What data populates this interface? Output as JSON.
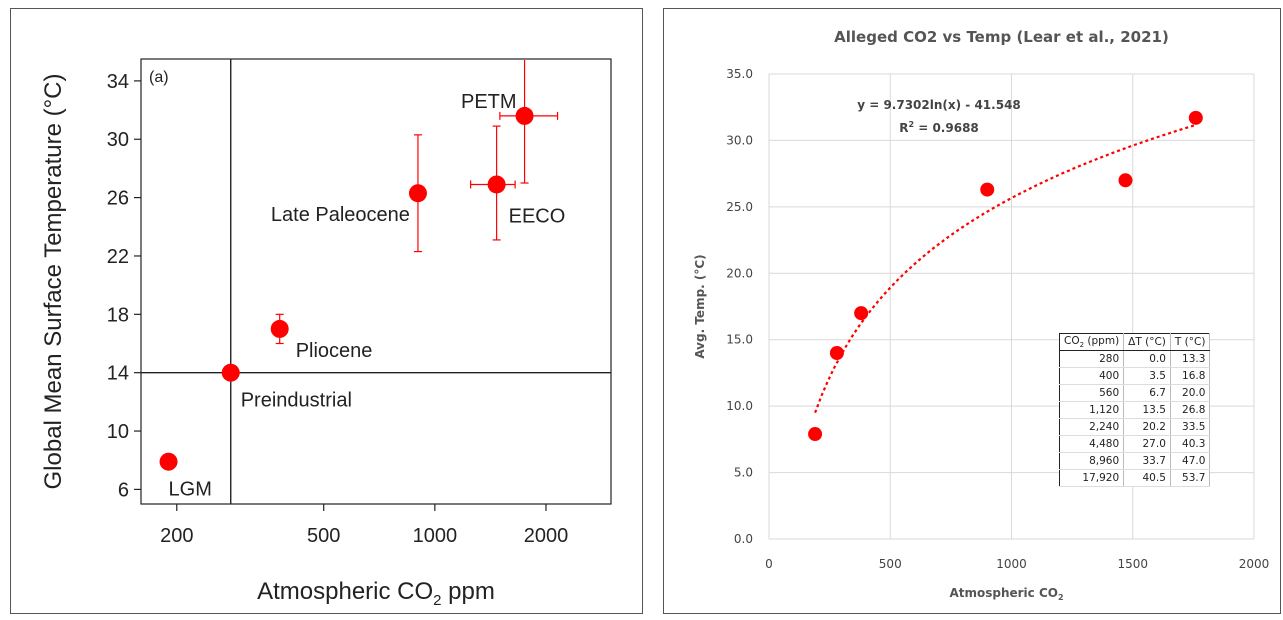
{
  "chart_data": [
    {
      "type": "scatter",
      "panel_label": "(a)",
      "xlabel_main": "Atmospheric CO",
      "xlabel_sub": "2",
      "xlabel_tail": " ppm",
      "ylabel": "Global Mean Surface Temperature (°C)",
      "xscale": "log",
      "xlim": [
        160,
        3000
      ],
      "ylim": [
        5,
        35.5
      ],
      "xticks": [
        200,
        500,
        1000,
        2000
      ],
      "yticks": [
        6,
        10,
        14,
        18,
        22,
        26,
        30,
        34
      ],
      "grid": false,
      "reference_lines": {
        "x": 280,
        "y": 14
      },
      "marker_color": "#ff0000",
      "points": [
        {
          "label": "LGM",
          "x": 190,
          "y": 7.9,
          "yerr_low": 7.9,
          "yerr_high": 7.9,
          "xerr_low": 190,
          "xerr_high": 190
        },
        {
          "label": "Preindustrial",
          "x": 280,
          "y": 14,
          "yerr_low": 14,
          "yerr_high": 14,
          "xerr_low": 280,
          "xerr_high": 280
        },
        {
          "label": "Pliocene",
          "x": 380,
          "y": 17,
          "yerr_low": 16,
          "yerr_high": 18,
          "xerr_low": 380,
          "xerr_high": 380
        },
        {
          "label": "Late Paleocene",
          "x": 900,
          "y": 26.3,
          "yerr_low": 22.3,
          "yerr_high": 30.3,
          "xerr_low": 900,
          "xerr_high": 900
        },
        {
          "label": "EECO",
          "x": 1470,
          "y": 26.9,
          "yerr_low": 23.1,
          "yerr_high": 30.9,
          "xerr_low": 1250,
          "xerr_high": 1650
        },
        {
          "label": "PETM",
          "x": 1750,
          "y": 31.6,
          "yerr_low": 27,
          "yerr_high": 35.5,
          "xerr_low": 1500,
          "xerr_high": 2150
        }
      ]
    },
    {
      "type": "scatter",
      "title": "Alleged CO2 vs Temp (Lear et al., 2021)",
      "xlabel_main": "Atmospheric CO",
      "xlabel_sub": "2",
      "ylabel": "Avg. Temp. (°C)",
      "xlim": [
        0,
        2000
      ],
      "ylim": [
        0,
        35
      ],
      "xticks": [
        0,
        500,
        1000,
        1500,
        2000
      ],
      "yticks": [
        0,
        5,
        10,
        15,
        20,
        25,
        30,
        35
      ],
      "xtick_labels": [
        "0",
        "500",
        "1000",
        "1500",
        "2000"
      ],
      "ytick_labels": [
        "0.0",
        "5.0",
        "10.0",
        "15.0",
        "20.0",
        "25.0",
        "30.0",
        "35.0"
      ],
      "grid": true,
      "marker_color": "#ff0000",
      "points": [
        {
          "x": 190,
          "y": 7.9
        },
        {
          "x": 280,
          "y": 14
        },
        {
          "x": 380,
          "y": 17
        },
        {
          "x": 900,
          "y": 26.3
        },
        {
          "x": 1470,
          "y": 27
        },
        {
          "x": 1760,
          "y": 31.7
        }
      ],
      "trendline": {
        "type": "log",
        "a": 9.7302,
        "b": -41.548,
        "x_from": 190,
        "x_to": 1760,
        "color": "#ff0000",
        "equation_text": "y = 9.7302ln(x) - 41.548",
        "r2_prefix": "R",
        "r2_sup": "2",
        "r2_suffix": " = 0.9688"
      },
      "table": {
        "headers": [
          {
            "main": "CO",
            "sub": "2",
            "tail": " (ppm)"
          },
          {
            "main": "ΔT (°C)",
            "sub": "",
            "tail": ""
          },
          {
            "main": "T (°C)",
            "sub": "",
            "tail": ""
          }
        ],
        "rows": [
          [
            "280",
            "0.0",
            "13.3"
          ],
          [
            "400",
            "3.5",
            "16.8"
          ],
          [
            "560",
            "6.7",
            "20.0"
          ],
          [
            "1,120",
            "13.5",
            "26.8"
          ],
          [
            "2,240",
            "20.2",
            "33.5"
          ],
          [
            "4,480",
            "27.0",
            "40.3"
          ],
          [
            "8,960",
            "33.7",
            "47.0"
          ],
          [
            "17,920",
            "40.5",
            "53.7"
          ]
        ]
      }
    }
  ]
}
